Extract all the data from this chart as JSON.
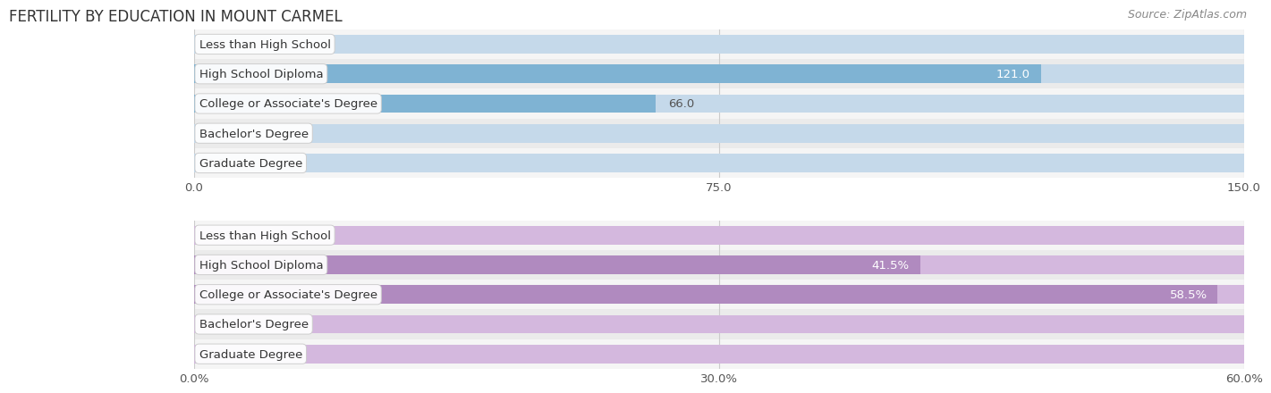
{
  "title": "FERTILITY BY EDUCATION IN MOUNT CARMEL",
  "source": "Source: ZipAtlas.com",
  "top_chart": {
    "categories": [
      "Less than High School",
      "High School Diploma",
      "College or Associate's Degree",
      "Bachelor's Degree",
      "Graduate Degree"
    ],
    "values": [
      0.0,
      121.0,
      66.0,
      0.0,
      0.0
    ],
    "bar_color": "#7fb3d3",
    "bar_bg_color": "#c5d9ea",
    "xlim": [
      0,
      150.0
    ],
    "xticks": [
      0.0,
      75.0,
      150.0
    ],
    "xtick_labels": [
      "0.0",
      "75.0",
      "150.0"
    ]
  },
  "bottom_chart": {
    "categories": [
      "Less than High School",
      "High School Diploma",
      "College or Associate's Degree",
      "Bachelor's Degree",
      "Graduate Degree"
    ],
    "values": [
      0.0,
      41.5,
      58.5,
      0.0,
      0.0
    ],
    "bar_color": "#b08abf",
    "bar_bg_color": "#d4b8de",
    "xlim": [
      0,
      60.0
    ],
    "xticks": [
      0.0,
      30.0,
      60.0
    ],
    "xtick_labels": [
      "0.0%",
      "30.0%",
      "60.0%"
    ]
  },
  "row_odd_bg": "#ebebeb",
  "row_even_bg": "#f5f5f5",
  "bar_height": 0.62,
  "label_fontsize": 9.5,
  "tick_fontsize": 9.5,
  "title_fontsize": 12,
  "source_fontsize": 9,
  "grid_color": "#cccccc"
}
